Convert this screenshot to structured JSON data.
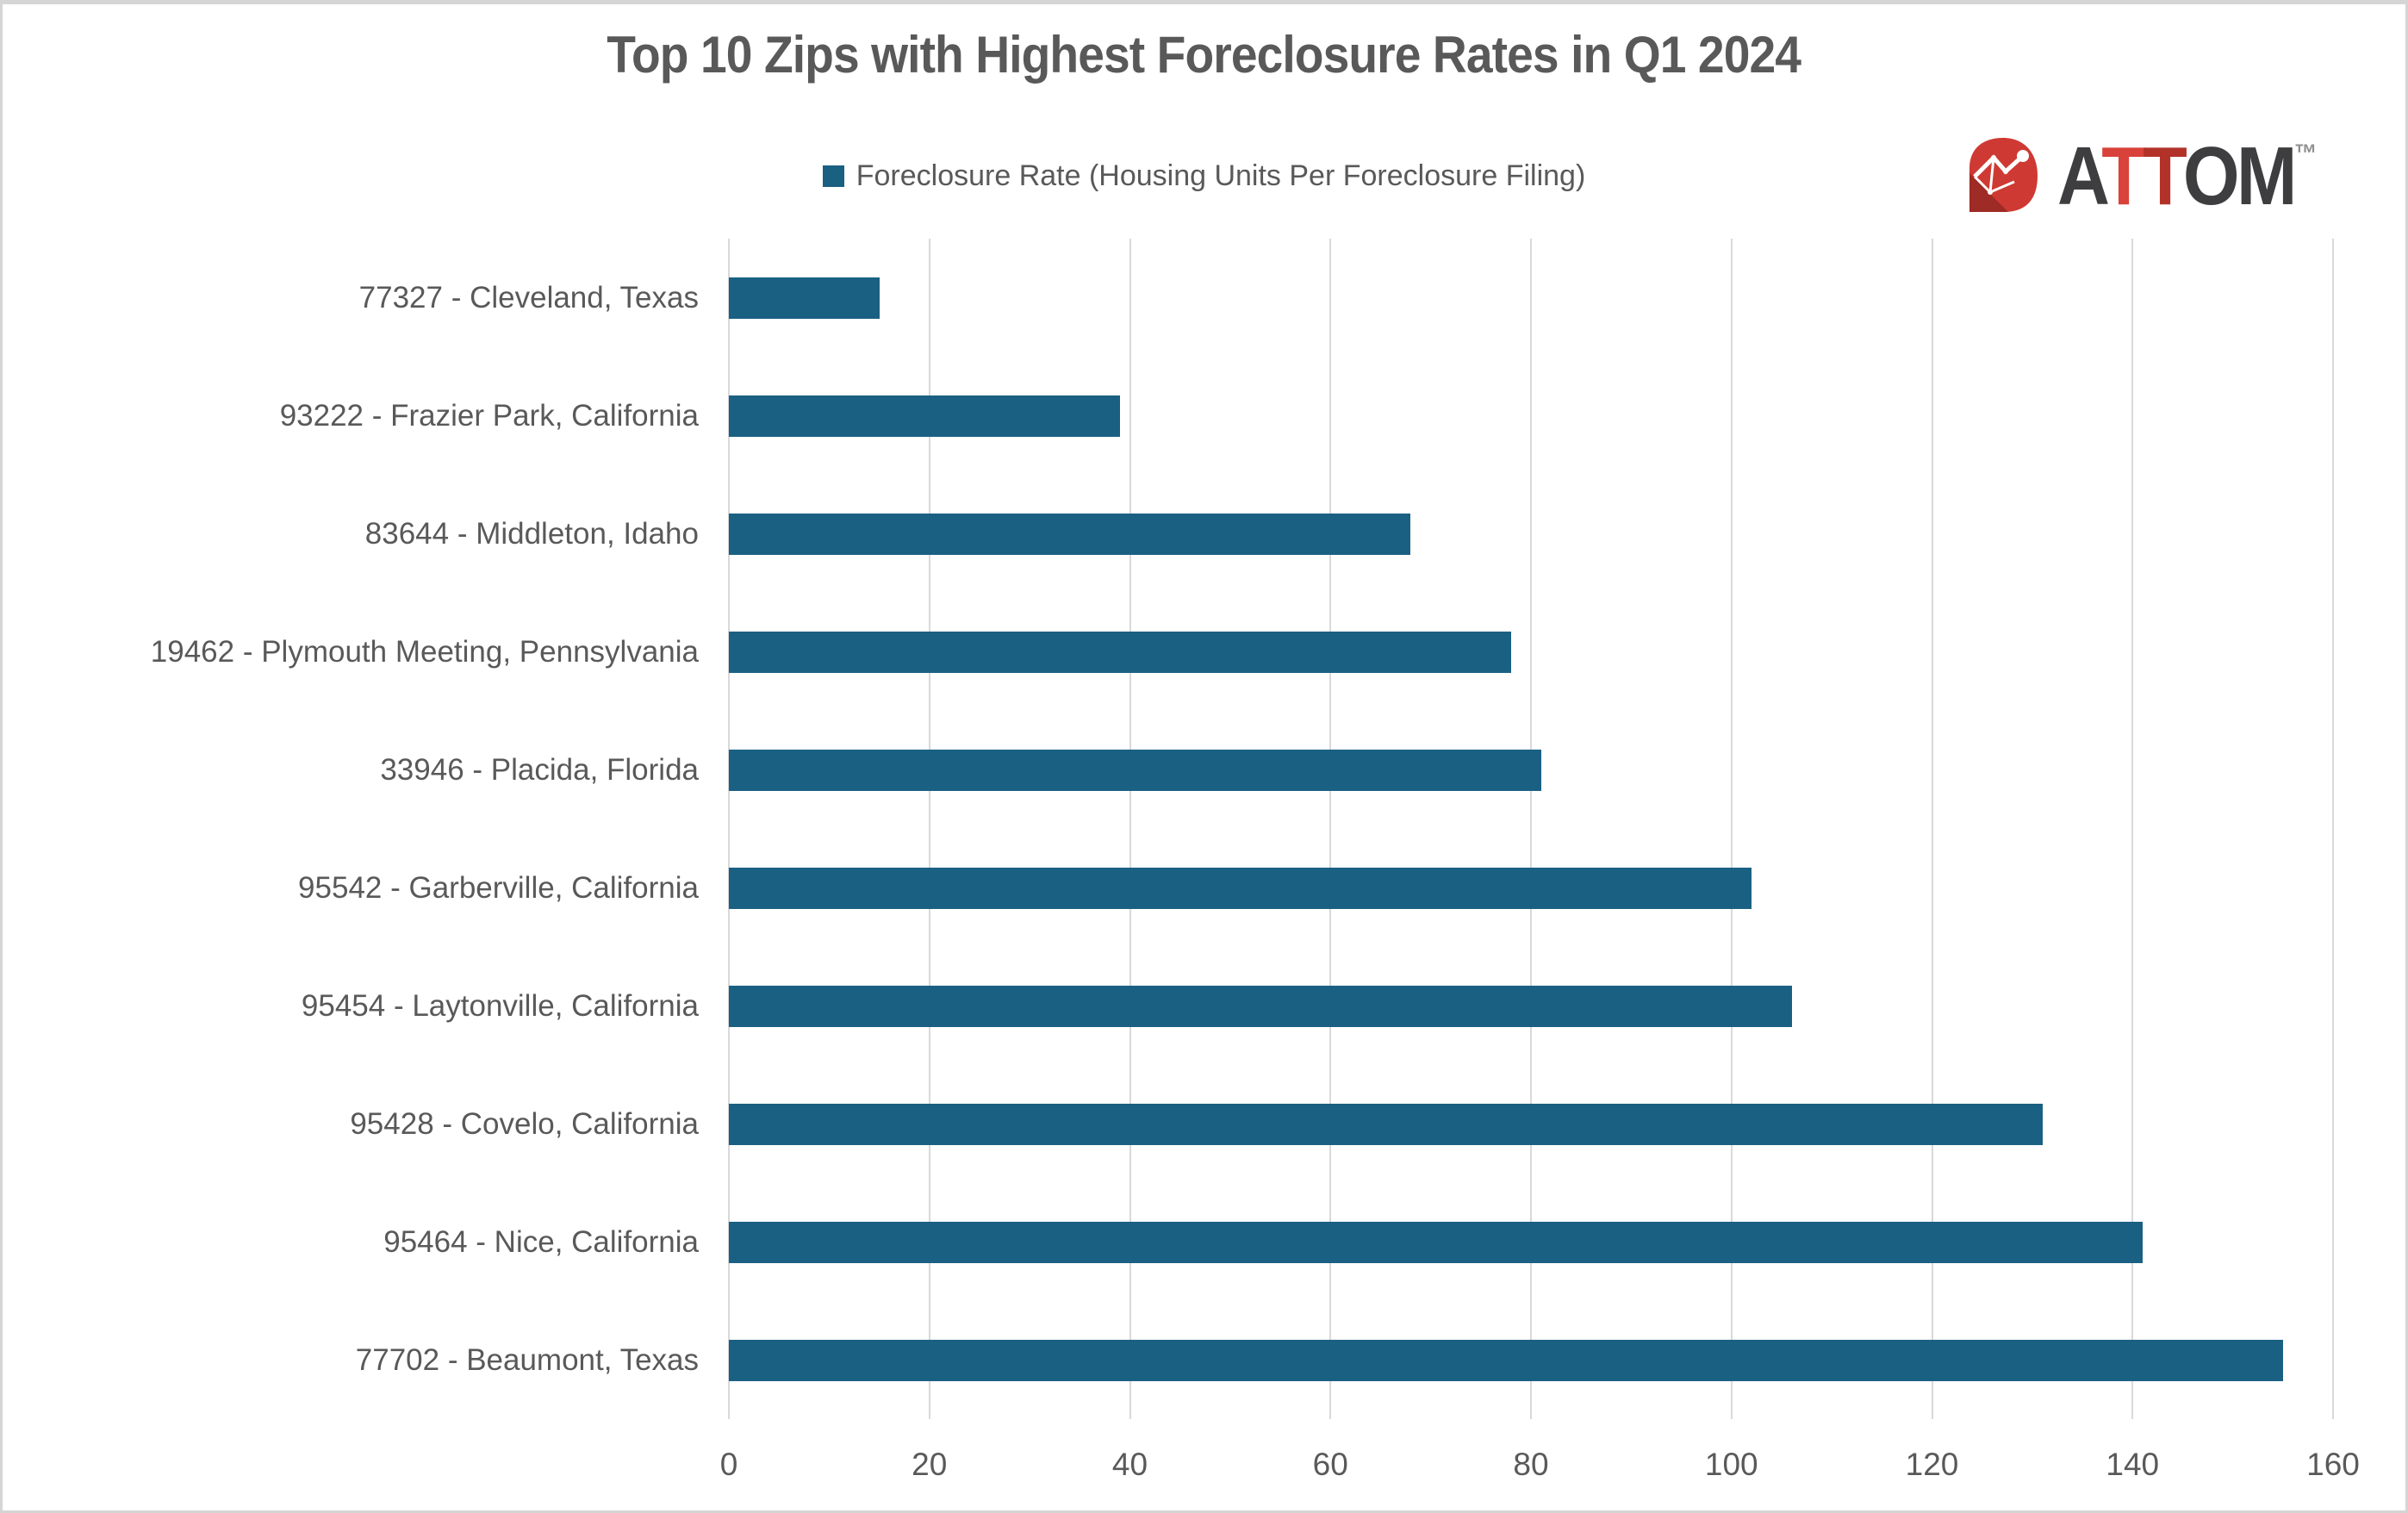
{
  "chart_data": {
    "type": "bar",
    "orientation": "horizontal",
    "title": "Top 10 Zips with Highest Foreclosure Rates in Q1 2024",
    "legend_label": "Foreclosure Rate (Housing Units Per Foreclosure Filing)",
    "legend_position": "top-center",
    "grid": "vertical-major",
    "xlabel": "",
    "ylabel": "",
    "xlim": [
      0,
      160
    ],
    "x_ticks": [
      0,
      20,
      40,
      60,
      80,
      100,
      120,
      140,
      160
    ],
    "categories": [
      "77327 - Cleveland, Texas",
      "93222 - Frazier Park, California",
      "83644 - Middleton, Idaho",
      "19462 - Plymouth Meeting, Pennsylvania",
      "33946 - Placida, Florida",
      "95542 - Garberville, California",
      "95454 - Laytonville, California",
      "95428 - Covelo, California",
      "95464 - Nice, California",
      "77702 - Beaumont, Texas"
    ],
    "values": [
      15,
      39,
      68,
      78,
      81,
      102,
      106,
      131,
      141,
      155
    ],
    "bar_color": "#1A6083"
  },
  "branding": {
    "logo_mark_icon": "attom-globe-mark",
    "logo_letters": [
      {
        "char": "A",
        "color": "#3E3E40"
      },
      {
        "char": "T",
        "color": "#D8423A"
      },
      {
        "char": "T",
        "color": "#B23229"
      },
      {
        "char": "O",
        "color": "#3E3E40"
      },
      {
        "char": "M",
        "color": "#3E3E40"
      }
    ],
    "trademark": "™"
  },
  "colors": {
    "background": "#FFFFFF",
    "border": "#D5D5D5",
    "text": "#595959",
    "gridline": "#D9D9D9",
    "bar": "#1A6083",
    "legend_swatch": "#1A6083",
    "emblem_red": "#CE3A33",
    "emblem_red_dark": "#9E2B25"
  }
}
